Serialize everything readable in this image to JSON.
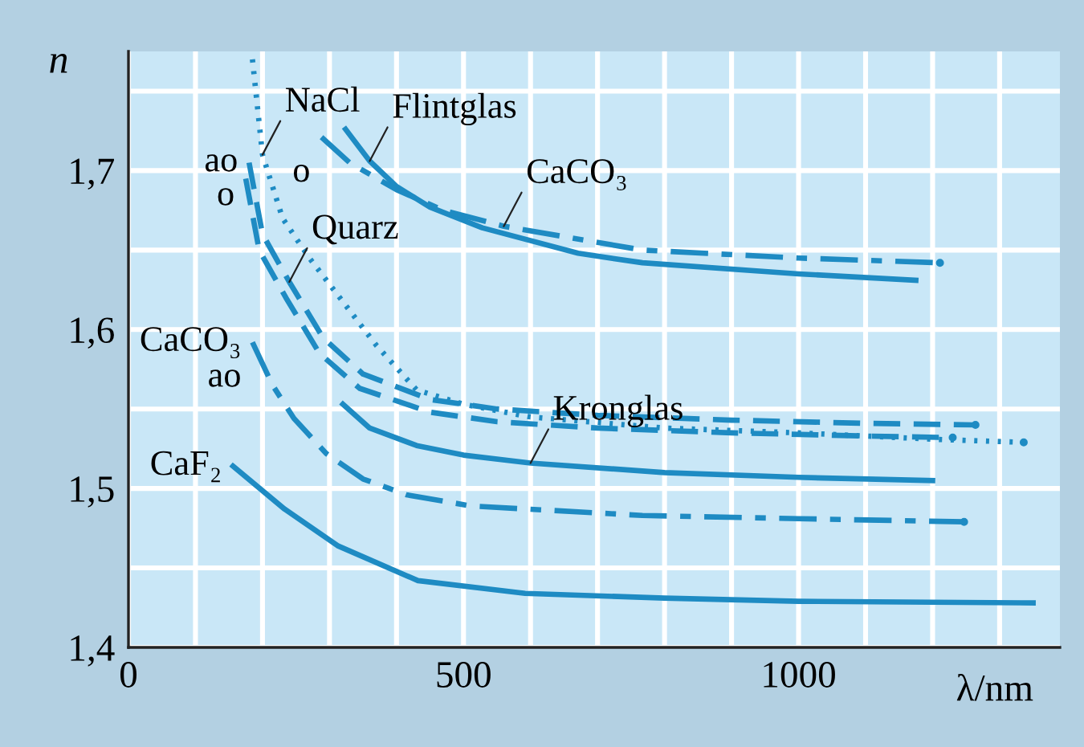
{
  "chart_data": {
    "type": "line",
    "xlabel": "λ/nm",
    "ylabel": "n",
    "xlim": [
      0,
      1390
    ],
    "ylim": [
      1.4,
      1.775
    ],
    "xticks": [
      0,
      {
        "value": 100,
        "label": null
      },
      {
        "value": 200,
        "label": null
      },
      {
        "value": 300,
        "label": null
      },
      {
        "value": 400,
        "label": null
      },
      500,
      {
        "value": 600,
        "label": null
      },
      {
        "value": 700,
        "label": null
      },
      {
        "value": 800,
        "label": null
      },
      {
        "value": 900,
        "label": null
      },
      1000,
      {
        "value": 1100,
        "label": null
      },
      {
        "value": 1200,
        "label": null
      },
      {
        "value": 1300,
        "label": null
      }
    ],
    "yticks": [
      {
        "value": 1.4,
        "label": "1,4"
      },
      {
        "value": 1.45,
        "label": null
      },
      {
        "value": 1.5,
        "label": "1,5"
      },
      {
        "value": 1.55,
        "label": null
      },
      {
        "value": 1.6,
        "label": "1,6"
      },
      {
        "value": 1.65,
        "label": null
      },
      {
        "value": 1.7,
        "label": "1,7"
      },
      {
        "value": 1.75,
        "label": null
      }
    ],
    "grid": true,
    "marker": "none",
    "series": [
      {
        "color": "#1e8bc3",
        "line_style": "dotted",
        "x": [
          185,
          200,
          230,
          270,
          370,
          430,
          500,
          600,
          800,
          1000,
          1200,
          1336
        ],
        "values": [
          1.77,
          1.71,
          1.67,
          1.645,
          1.59,
          1.562,
          1.553,
          1.545,
          1.538,
          1.535,
          1.531,
          1.529
        ]
      },
      {
        "color": "#1e8bc3",
        "line_style": "dashed",
        "x": [
          180,
          200,
          240,
          290,
          350,
          450,
          550,
          700,
          900,
          1100,
          1264
        ],
        "values": [
          1.705,
          1.66,
          1.63,
          1.595,
          1.572,
          1.556,
          1.55,
          1.546,
          1.543,
          1.541,
          1.54
        ]
      },
      {
        "color": "#1e8bc3",
        "line_style": "dashed",
        "x": [
          175,
          195,
          235,
          285,
          345,
          450,
          550,
          700,
          900,
          1100,
          1230
        ],
        "values": [
          1.695,
          1.65,
          1.62,
          1.585,
          1.563,
          1.548,
          1.542,
          1.538,
          1.535,
          1.533,
          1.532
        ]
      },
      {
        "color": "#1e8bc3",
        "line_style": "solid",
        "x": [
          324,
          360,
          400,
          450,
          528,
          671,
          767,
          1000,
          1175
        ],
        "values": [
          1.726,
          1.706,
          1.69,
          1.677,
          1.664,
          1.648,
          1.642,
          1.635,
          1.631
        ]
      },
      {
        "color": "#1e8bc3",
        "line_style": "dashdot",
        "x": [
          288,
          330,
          400,
          470,
          560,
          767,
          1000,
          1211
        ],
        "values": [
          1.721,
          1.705,
          1.688,
          1.675,
          1.665,
          1.65,
          1.645,
          1.642
        ]
      },
      {
        "color": "#1e8bc3",
        "line_style": "solid",
        "x": [
          320,
          360,
          430,
          500,
          600,
          800,
          1000,
          1200
        ],
        "values": [
          1.553,
          1.538,
          1.527,
          1.521,
          1.516,
          1.51,
          1.507,
          1.505
        ]
      },
      {
        "color": "#1e8bc3",
        "line_style": "dashdot",
        "x": [
          185,
          215,
          247,
          295,
          350,
          415,
          511,
          767,
          1000,
          1247
        ],
        "values": [
          1.592,
          1.565,
          1.544,
          1.522,
          1.506,
          1.496,
          1.489,
          1.483,
          1.481,
          1.479
        ]
      },
      {
        "color": "#1e8bc3",
        "line_style": "solid",
        "x": [
          156,
          233,
          312,
          432,
          592,
          800,
          1000,
          1350
        ],
        "values": [
          1.514,
          1.487,
          1.464,
          1.442,
          1.434,
          1.431,
          1.429,
          1.428
        ]
      }
    ],
    "annotations": [
      {
        "text": "NaCl",
        "x": 200,
        "y": 1.71
      },
      {
        "text": "ao",
        "x": 180,
        "y": 1.705
      },
      {
        "text": "o",
        "x": 175,
        "y": 1.695
      },
      {
        "text": "o",
        "x": 288,
        "y": 1.721
      },
      {
        "text": "Flintglas",
        "x": 360,
        "y": 1.706
      },
      {
        "text": "CaCO₃",
        "x": 560,
        "y": 1.665
      },
      {
        "text": "Quarz",
        "x": 240,
        "y": 1.63
      },
      {
        "text": "CaCO₃",
        "x": 185,
        "y": 1.592
      },
      {
        "text": "ao",
        "x": 185,
        "y": 1.592
      },
      {
        "text": "Kronglas",
        "x": 600,
        "y": 1.516
      },
      {
        "text": "CaF₂",
        "x": 156,
        "y": 1.514
      }
    ]
  }
}
